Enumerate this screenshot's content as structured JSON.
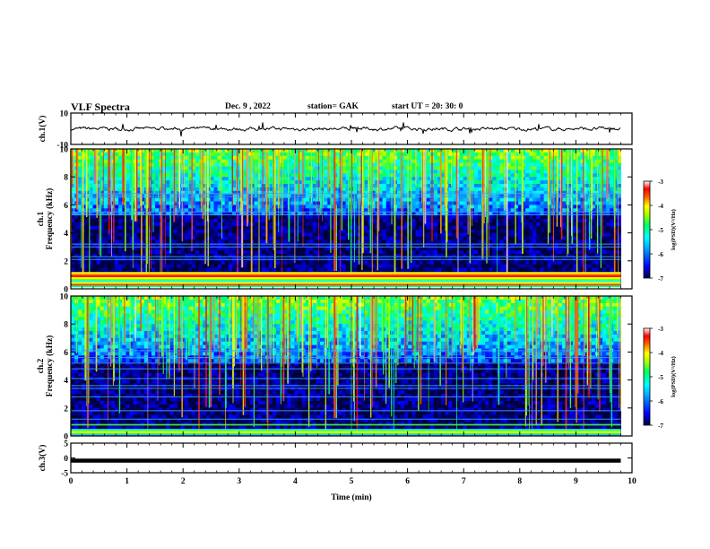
{
  "header": {
    "title": "VLF Spectra",
    "date": "Dec. 9 , 2022",
    "station": "station= GAK",
    "start": "start UT =  20: 30: 0"
  },
  "chart_data": [
    {
      "type": "line",
      "name": "ch1-waveform",
      "ylabel": "ch.1(V)",
      "ylim": [
        -10,
        10
      ],
      "ytick_labels": [
        "10",
        "-10"
      ],
      "xlim": [
        0,
        10
      ],
      "trace_mean": -0.1,
      "trace_range": [
        -6,
        4
      ]
    },
    {
      "type": "heatmap",
      "name": "ch1-spectrogram",
      "ylabel_top": "ch.1",
      "ylabel": "Frequency (kHz)",
      "ylim": [
        0,
        10
      ],
      "ytick_labels": [
        "0",
        "2",
        "4",
        "6",
        "8",
        "10"
      ],
      "xlim": [
        0,
        9.8
      ],
      "colorbar": {
        "label": "log(PSD)(V²/Hz)",
        "range": [
          -7,
          -3
        ],
        "tick_labels": [
          "-3",
          "-4",
          "-5",
          "-6",
          "-7"
        ]
      },
      "narrowband_lines_khz": [
        0.2,
        0.5,
        0.8,
        2.1,
        2.3,
        3.0,
        3.2,
        5.3,
        5.5,
        6.6,
        6.8
      ],
      "notable_event_min": 4.7
    },
    {
      "type": "heatmap",
      "name": "ch2-spectrogram",
      "ylabel_top": "ch.2",
      "ylabel": "Frequency (kHz)",
      "ylim": [
        0,
        10
      ],
      "ytick_labels": [
        "0",
        "2",
        "4",
        "6",
        "8",
        "10"
      ],
      "xlim": [
        0,
        9.8
      ],
      "colorbar": {
        "label": "log(PSD)(V²/Hz)",
        "range": [
          -7,
          -3
        ],
        "tick_labels": [
          "-3",
          "-4",
          "-5",
          "-6",
          "-7"
        ]
      },
      "narrowband_lines_khz": [
        0.3,
        0.8,
        1.2,
        1.8,
        2.8,
        3.4,
        3.6,
        4.1,
        4.8,
        5.2,
        5.6,
        6.1
      ],
      "notable_event_min": 4.7
    },
    {
      "type": "line",
      "name": "ch3-waveform",
      "ylabel": "ch.3(V)",
      "ylim": [
        -5,
        5
      ],
      "ytick_labels": [
        "5",
        "0",
        "-5"
      ],
      "xlim": [
        0,
        10
      ],
      "trace_value": -0.9
    }
  ],
  "x_axis": {
    "label": "Time (min)",
    "tick_labels": [
      "0",
      "1",
      "2",
      "3",
      "4",
      "5",
      "6",
      "7",
      "8",
      "9",
      "10"
    ]
  },
  "colors": {
    "scale": [
      "#000060",
      "#0000ff",
      "#00a0ff",
      "#00ffff",
      "#00ff80",
      "#80ff00",
      "#ffff00",
      "#ff8000",
      "#ff0000",
      "#ffffff"
    ]
  }
}
